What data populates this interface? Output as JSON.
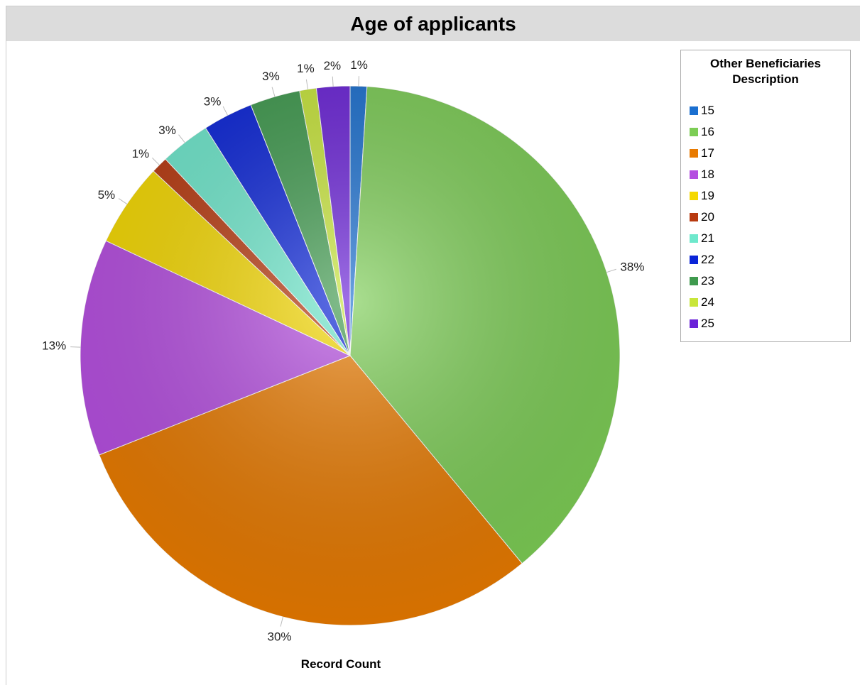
{
  "chart_data": {
    "type": "pie",
    "title": "Age of applicants",
    "x_label": "Record Count",
    "legend_title": "Other Beneficiaries Description",
    "categories": [
      "15",
      "16",
      "17",
      "18",
      "19",
      "20",
      "21",
      "22",
      "23",
      "24",
      "25"
    ],
    "values": [
      1,
      38,
      30,
      13,
      5,
      1,
      3,
      3,
      3,
      1,
      2
    ],
    "colors": [
      "#1a6fd0",
      "#7ccd55",
      "#e87a00",
      "#b54ee0",
      "#f5d800",
      "#b83a10",
      "#6ee8cc",
      "#0a24d8",
      "#3f9a4e",
      "#c8e63a",
      "#6a22d8"
    ],
    "legend": "top-right"
  }
}
